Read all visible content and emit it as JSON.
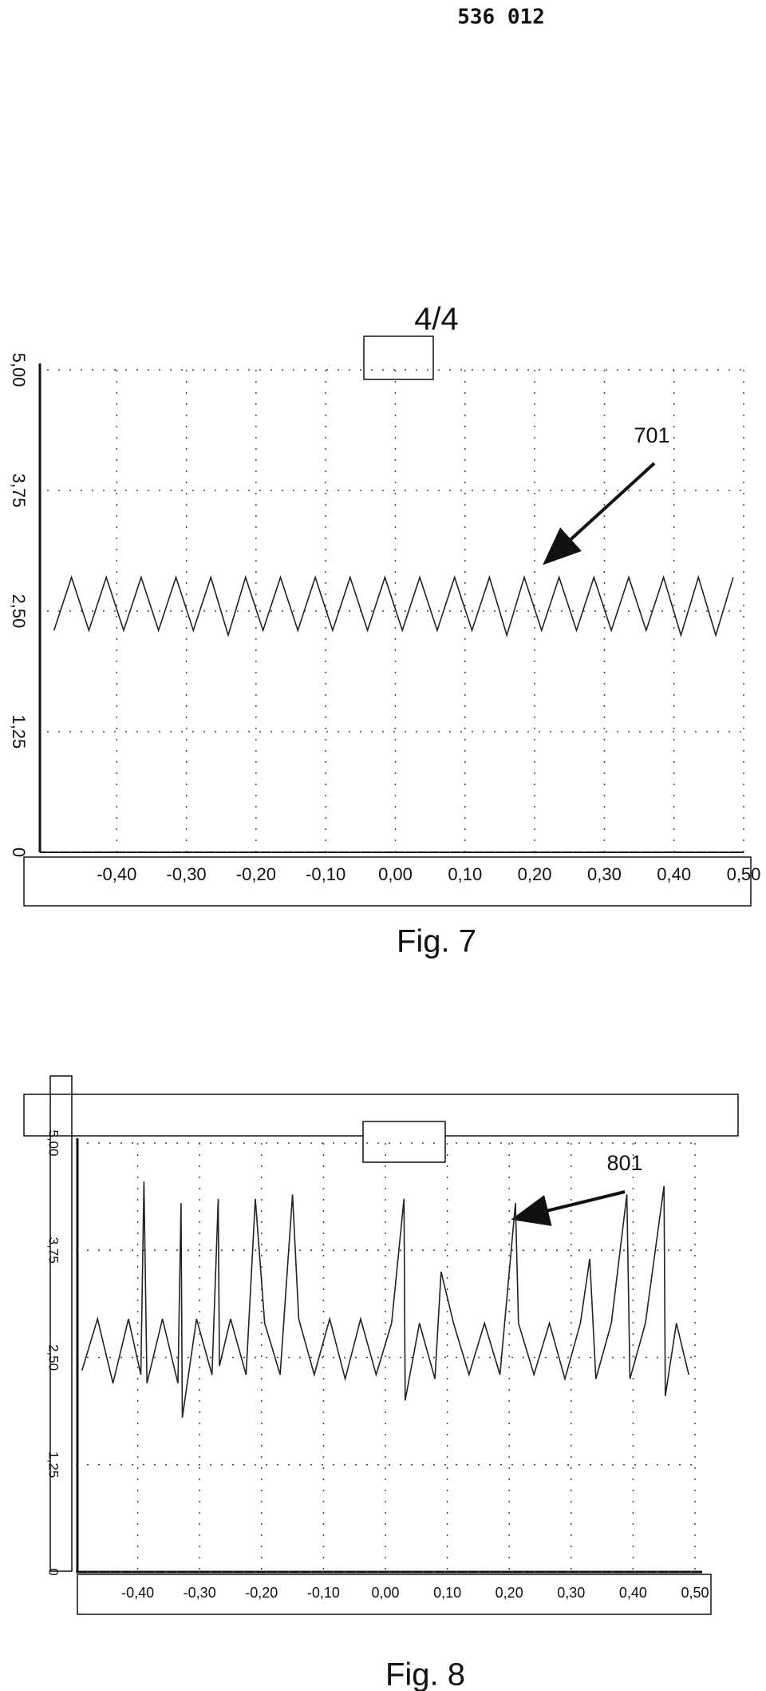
{
  "page_number": "536 012",
  "sheet": "4/4",
  "chart_data": [
    {
      "type": "line",
      "caption": "Fig. 7",
      "annotation": "701",
      "color": "#222222",
      "grid": true,
      "xlim": [
        -0.5,
        0.5
      ],
      "ylim": [
        0,
        5
      ],
      "xticks": [
        {
          "value": -0.4,
          "label": "-0,40"
        },
        {
          "value": -0.3,
          "label": "-0,30"
        },
        {
          "value": -0.2,
          "label": "-0,20"
        },
        {
          "value": -0.1,
          "label": "-0,10"
        },
        {
          "value": 0,
          "label": "0,00"
        },
        {
          "value": 0.1,
          "label": "0,10"
        },
        {
          "value": 0.2,
          "label": "0,20"
        },
        {
          "value": 0.3,
          "label": "0,30"
        },
        {
          "value": 0.4,
          "label": "0,40"
        },
        {
          "value": 0.5,
          "label": "0,50"
        }
      ],
      "yticks": [
        0,
        {
          "value": 1.25,
          "label": "1,25"
        },
        {
          "value": 2.5,
          "label": "2,50"
        },
        {
          "value": 3.75,
          "label": "3,75"
        },
        {
          "value": 5,
          "label": "5,00"
        }
      ],
      "x": [
        -0.49,
        -0.465,
        -0.44,
        -0.415,
        -0.39,
        -0.365,
        -0.34,
        -0.315,
        -0.29,
        -0.265,
        -0.24,
        -0.215,
        -0.19,
        -0.165,
        -0.14,
        -0.115,
        -0.09,
        -0.065,
        -0.04,
        -0.015,
        0.01,
        0.035,
        0.06,
        0.085,
        0.11,
        0.135,
        0.16,
        0.185,
        0.21,
        0.235,
        0.26,
        0.285,
        0.31,
        0.335,
        0.36,
        0.385,
        0.41,
        0.435,
        0.46,
        0.485
      ],
      "values": [
        2.3,
        2.85,
        2.3,
        2.85,
        2.3,
        2.85,
        2.3,
        2.85,
        2.3,
        2.85,
        2.25,
        2.85,
        2.3,
        2.85,
        2.3,
        2.85,
        2.3,
        2.85,
        2.3,
        2.85,
        2.3,
        2.85,
        2.3,
        2.85,
        2.3,
        2.85,
        2.25,
        2.85,
        2.3,
        2.85,
        2.3,
        2.85,
        2.3,
        2.85,
        2.3,
        2.85,
        2.25,
        2.85,
        2.25,
        2.85
      ]
    },
    {
      "type": "line",
      "caption": "Fig. 8",
      "annotation": "801",
      "color": "#222222",
      "grid": true,
      "xlim": [
        -0.5,
        0.5
      ],
      "ylim": [
        0,
        5
      ],
      "xticks": [
        {
          "value": -0.4,
          "label": "-0,40"
        },
        {
          "value": -0.3,
          "label": "-0,30"
        },
        {
          "value": -0.2,
          "label": "-0,20"
        },
        {
          "value": -0.1,
          "label": "-0,10"
        },
        {
          "value": 0,
          "label": "0,00"
        },
        {
          "value": 0.1,
          "label": "0,10"
        },
        {
          "value": 0.2,
          "label": "0,20"
        },
        {
          "value": 0.3,
          "label": "0,30"
        },
        {
          "value": 0.4,
          "label": "0,40"
        },
        {
          "value": 0.5,
          "label": "0,50"
        }
      ],
      "yticks": [
        0,
        {
          "value": 1.25,
          "label": "1,25"
        },
        {
          "value": 2.5,
          "label": "2,50"
        },
        {
          "value": 3.75,
          "label": "3,75"
        },
        {
          "value": 5,
          "label": "5,00"
        }
      ],
      "x": [
        -0.49,
        -0.465,
        -0.44,
        -0.415,
        -0.395,
        -0.39,
        -0.385,
        -0.36,
        -0.335,
        -0.33,
        -0.328,
        -0.305,
        -0.28,
        -0.27,
        -0.268,
        -0.25,
        -0.225,
        -0.21,
        -0.195,
        -0.17,
        -0.15,
        -0.14,
        -0.115,
        -0.09,
        -0.065,
        -0.04,
        -0.015,
        0.01,
        0.03,
        0.032,
        0.055,
        0.08,
        0.09,
        0.11,
        0.135,
        0.16,
        0.185,
        0.21,
        0.215,
        0.24,
        0.265,
        0.29,
        0.315,
        0.33,
        0.34,
        0.365,
        0.39,
        0.395,
        0.42,
        0.45,
        0.452,
        0.47,
        0.49
      ],
      "values": [
        2.35,
        2.95,
        2.2,
        2.95,
        2.3,
        4.55,
        2.2,
        2.95,
        2.2,
        4.3,
        1.8,
        2.95,
        2.3,
        4.35,
        2.4,
        2.95,
        2.3,
        4.35,
        2.9,
        2.3,
        4.4,
        2.95,
        2.3,
        2.95,
        2.25,
        2.95,
        2.3,
        2.9,
        4.35,
        2.0,
        2.9,
        2.25,
        3.5,
        2.9,
        2.3,
        2.9,
        2.3,
        4.3,
        2.9,
        2.3,
        2.9,
        2.25,
        2.9,
        3.65,
        2.25,
        2.9,
        4.4,
        2.25,
        2.9,
        4.5,
        2.05,
        2.9,
        2.3
      ]
    }
  ]
}
